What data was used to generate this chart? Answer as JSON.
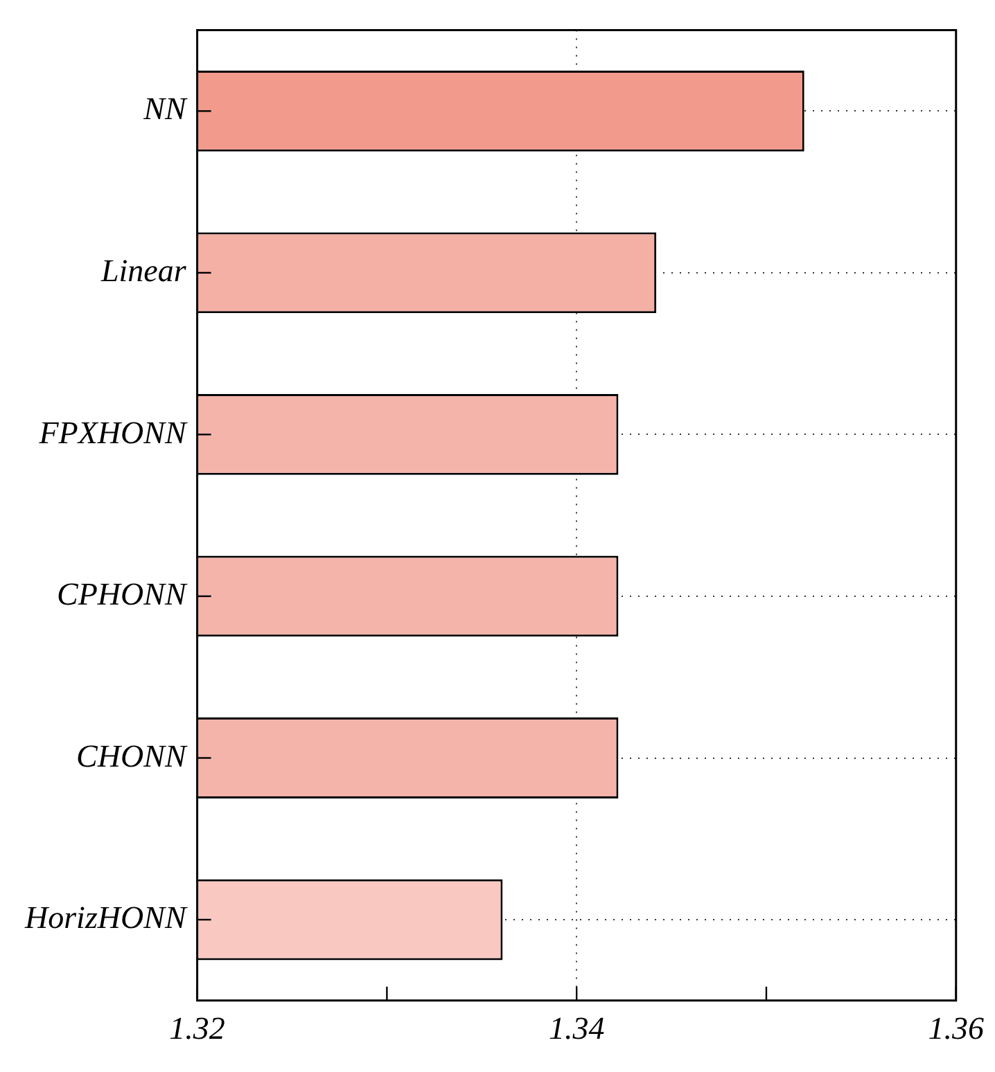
{
  "chart_data": {
    "type": "bar",
    "orientation": "horizontal",
    "categories": [
      "NN",
      "Linear",
      "FPXHONN",
      "CPHONN",
      "CHONN",
      "HorizHONN"
    ],
    "values": [
      1.352,
      1.3442,
      1.3422,
      1.3422,
      1.3422,
      1.3361
    ],
    "colors": [
      "#f29a8c",
      "#f5b0a6",
      "#f5b4aa",
      "#f5b4aa",
      "#f5b4aa",
      "#f8c8c1"
    ],
    "xlim": [
      1.32,
      1.36
    ],
    "xticks": [
      1.32,
      {
        "value": 1.33,
        "label": null
      },
      1.34,
      {
        "value": 1.35,
        "label": null
      },
      1.36
    ],
    "grid": true,
    "legend": false
  }
}
